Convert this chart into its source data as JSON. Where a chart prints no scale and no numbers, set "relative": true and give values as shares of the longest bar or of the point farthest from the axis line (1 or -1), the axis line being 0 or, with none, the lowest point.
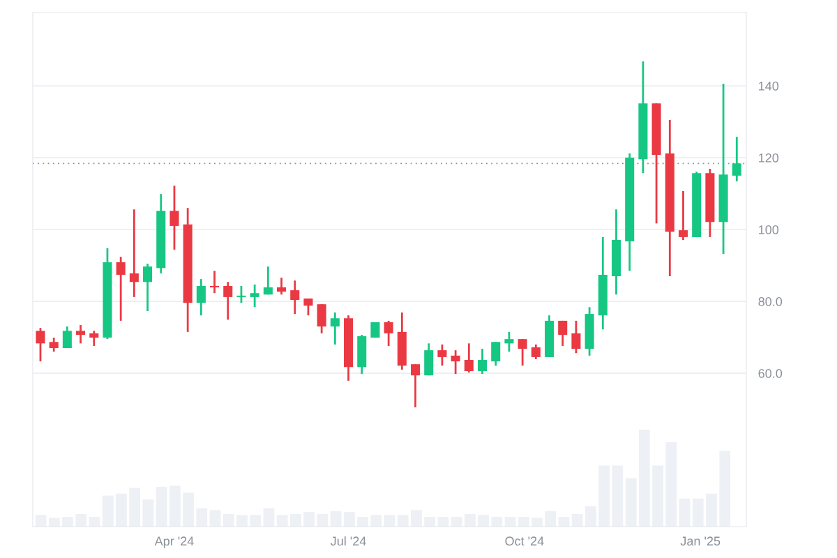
{
  "chart_data": [
    {
      "type": "candlestick",
      "x": [
        "2024-01-22",
        "2024-01-29",
        "2024-02-05",
        "2024-02-12",
        "2024-02-19",
        "2024-02-26",
        "2024-03-04",
        "2024-03-11",
        "2024-03-18",
        "2024-03-25",
        "2024-04-01",
        "2024-04-08",
        "2024-04-15",
        "2024-04-22",
        "2024-04-29",
        "2024-05-06",
        "2024-05-13",
        "2024-05-20",
        "2024-05-27",
        "2024-06-03",
        "2024-06-10",
        "2024-06-17",
        "2024-06-24",
        "2024-07-01",
        "2024-07-08",
        "2024-07-15",
        "2024-07-22",
        "2024-07-29",
        "2024-08-05",
        "2024-08-12",
        "2024-08-19",
        "2024-08-26",
        "2024-09-02",
        "2024-09-09",
        "2024-09-16",
        "2024-09-23",
        "2024-09-30",
        "2024-10-07",
        "2024-10-14",
        "2024-10-21",
        "2024-10-28",
        "2024-11-04",
        "2024-11-11",
        "2024-11-18",
        "2024-11-25",
        "2024-12-02",
        "2024-12-09",
        "2024-12-16",
        "2024-12-23",
        "2024-12-30",
        "2025-01-06",
        "2025-01-13",
        "2025-01-20"
      ],
      "ohlc": [
        [
          71.8,
          72.6,
          63.3,
          68.3
        ],
        [
          68.7,
          69.9,
          66.0,
          67.0
        ],
        [
          67.0,
          73.0,
          67.0,
          71.8
        ],
        [
          71.8,
          73.4,
          68.3,
          70.7
        ],
        [
          71.1,
          71.8,
          67.6,
          69.9
        ],
        [
          69.9,
          94.8,
          69.5,
          90.9
        ],
        [
          90.9,
          92.4,
          74.6,
          87.4
        ],
        [
          87.8,
          105.6,
          81.2,
          85.4
        ],
        [
          85.4,
          90.5,
          77.3,
          89.7
        ],
        [
          89.3,
          109.9,
          87.8,
          105.2
        ],
        [
          105.2,
          112.2,
          94.4,
          101.0
        ],
        [
          101.4,
          106.0,
          71.5,
          79.6
        ],
        [
          79.6,
          86.2,
          76.1,
          84.3
        ],
        [
          84.3,
          88.5,
          82.3,
          83.9
        ],
        [
          84.3,
          85.4,
          74.9,
          81.2
        ],
        [
          81.2,
          84.3,
          79.6,
          81.6
        ],
        [
          81.2,
          84.7,
          78.4,
          82.3
        ],
        [
          81.9,
          89.7,
          81.9,
          83.9
        ],
        [
          83.9,
          86.6,
          81.9,
          82.7
        ],
        [
          83.1,
          85.8,
          76.5,
          80.4
        ],
        [
          80.8,
          80.8,
          76.1,
          78.8
        ],
        [
          79.2,
          79.2,
          71.1,
          73.0
        ],
        [
          73.0,
          76.9,
          68.0,
          75.3
        ],
        [
          75.3,
          76.1,
          57.9,
          61.7
        ],
        [
          61.7,
          70.7,
          59.8,
          70.3
        ],
        [
          69.9,
          74.2,
          69.9,
          74.2
        ],
        [
          74.2,
          74.6,
          67.6,
          71.1
        ],
        [
          71.5,
          76.9,
          61.0,
          62.1
        ],
        [
          62.5,
          62.5,
          50.5,
          59.4
        ],
        [
          59.4,
          68.3,
          59.4,
          66.4
        ],
        [
          66.4,
          68.0,
          62.1,
          64.5
        ],
        [
          64.9,
          66.4,
          59.8,
          63.3
        ],
        [
          63.7,
          68.3,
          60.2,
          60.6
        ],
        [
          60.6,
          66.8,
          59.8,
          63.7
        ],
        [
          63.3,
          68.7,
          62.1,
          68.7
        ],
        [
          68.3,
          71.5,
          66.0,
          69.5
        ],
        [
          69.5,
          69.5,
          62.1,
          66.8
        ],
        [
          67.2,
          68.0,
          63.9,
          64.5
        ],
        [
          64.5,
          76.1,
          64.5,
          74.6
        ],
        [
          74.6,
          74.6,
          67.6,
          70.7
        ],
        [
          71.1,
          74.6,
          65.6,
          66.8
        ],
        [
          66.8,
          78.4,
          64.9,
          76.5
        ],
        [
          76.1,
          97.9,
          72.2,
          87.4
        ],
        [
          87.0,
          105.6,
          81.9,
          97.1
        ],
        [
          96.7,
          121.2,
          88.5,
          120.0
        ],
        [
          119.6,
          146.8,
          115.7,
          135.1
        ],
        [
          135.1,
          135.1,
          101.7,
          120.8
        ],
        [
          121.2,
          130.5,
          87.0,
          99.4
        ],
        [
          99.8,
          110.7,
          97.1,
          97.9
        ],
        [
          97.9,
          116.1,
          97.9,
          115.7
        ],
        [
          115.7,
          116.9,
          97.9,
          102.1
        ],
        [
          102.1,
          140.6,
          93.2,
          115.3
        ],
        [
          115.0,
          125.8,
          113.4,
          118.4
        ]
      ],
      "colors": [
        "#ea3943",
        "#ea3943",
        "#16c784",
        "#ea3943",
        "#ea3943",
        "#16c784",
        "#ea3943",
        "#ea3943",
        "#16c784",
        "#16c784",
        "#ea3943",
        "#ea3943",
        "#16c784",
        "#ea3943",
        "#ea3943",
        "#16c784",
        "#16c784",
        "#16c784",
        "#ea3943",
        "#ea3943",
        "#ea3943",
        "#ea3943",
        "#16c784",
        "#ea3943",
        "#16c784",
        "#16c784",
        "#ea3943",
        "#ea3943",
        "#ea3943",
        "#16c784",
        "#ea3943",
        "#ea3943",
        "#ea3943",
        "#16c784",
        "#16c784",
        "#16c784",
        "#ea3943",
        "#ea3943",
        "#16c784",
        "#ea3943",
        "#ea3943",
        "#16c784",
        "#16c784",
        "#16c784",
        "#16c784",
        "#16c784",
        "#ea3943",
        "#ea3943",
        "#ea3943",
        "#16c784",
        "#ea3943",
        "#16c784",
        "#16c784"
      ],
      "xlim": [
        "2024-01-18",
        "2025-01-25"
      ],
      "xticks": [
        {
          "value": "2024-04-01",
          "label": "Apr '24"
        },
        {
          "value": "2024-07-01",
          "label": "Jul '24"
        },
        {
          "value": "2024-10-01",
          "label": "Oct '24"
        },
        {
          "value": "2025-01-01",
          "label": "Jan '25"
        }
      ],
      "ylim": [
        17.3,
        160.4
      ],
      "yticks": [
        {
          "value": 60,
          "label": "60.0"
        },
        {
          "value": 80,
          "label": "80.0"
        },
        100,
        120,
        140
      ],
      "grid": "y",
      "ref_lines": [
        {
          "axis": "y",
          "value": 118.4,
          "color": "#8a8f98",
          "line_style": "dotted"
        }
      ]
    },
    {
      "type": "bar",
      "relative": true,
      "color": "#edf0f4",
      "categories": [
        null,
        null,
        null,
        null,
        null,
        null,
        null,
        null,
        null,
        null,
        null,
        null,
        null,
        null,
        null,
        null,
        null,
        null,
        null,
        null,
        null,
        null,
        null,
        null,
        null,
        null,
        null,
        null,
        null,
        null,
        null,
        null,
        null,
        null,
        null,
        null,
        null,
        null,
        null,
        null,
        null,
        null,
        null,
        null,
        null,
        null,
        null,
        null,
        null,
        null,
        null,
        null
      ],
      "values": [
        0.12,
        0.09,
        0.1,
        0.13,
        0.1,
        0.32,
        0.34,
        0.4,
        0.28,
        0.41,
        0.42,
        0.35,
        0.19,
        0.17,
        0.13,
        0.12,
        0.12,
        0.19,
        0.12,
        0.13,
        0.15,
        0.13,
        0.16,
        0.15,
        0.1,
        0.12,
        0.12,
        0.12,
        0.17,
        0.1,
        0.1,
        0.1,
        0.13,
        0.12,
        0.1,
        0.1,
        0.1,
        0.09,
        0.16,
        0.1,
        0.13,
        0.21,
        0.63,
        0.63,
        0.5,
        1.0,
        0.63,
        0.87,
        0.29,
        0.29,
        0.34,
        0.78
      ]
    }
  ]
}
